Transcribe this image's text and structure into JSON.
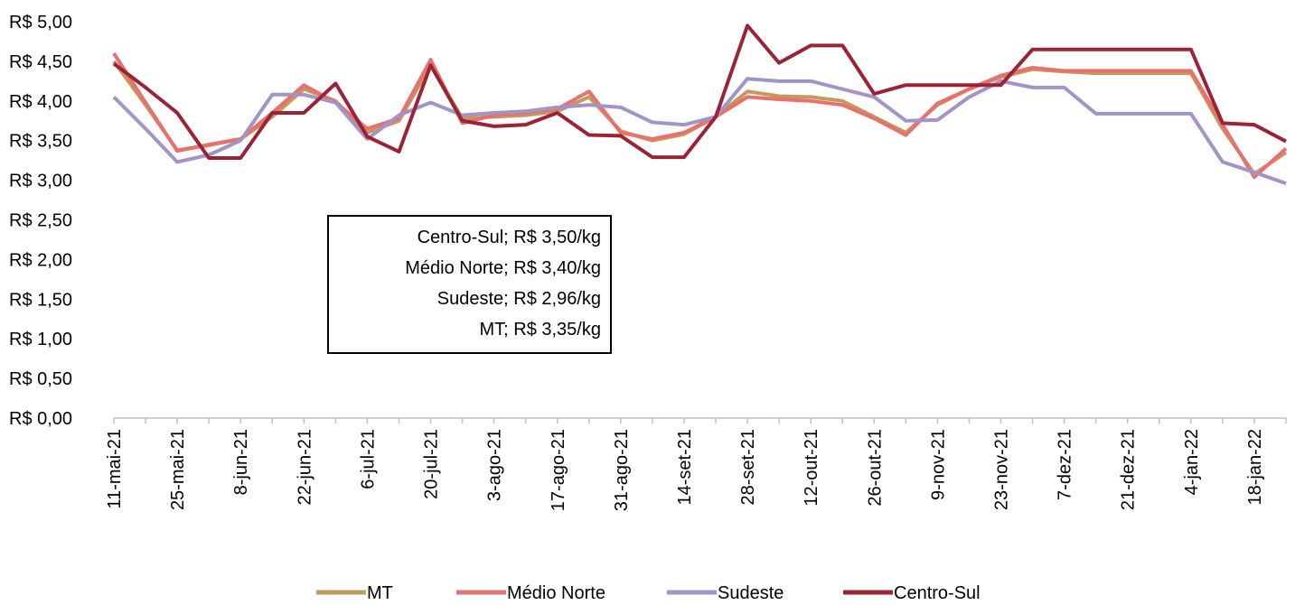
{
  "chart_data": {
    "type": "line",
    "categories": [
      "11-mai-21",
      null,
      "25-mai-21",
      null,
      "8-jun-21",
      null,
      "22-jun-21",
      null,
      "6-jul-21",
      null,
      "20-jul-21",
      null,
      "3-ago-21",
      null,
      "17-ago-21",
      null,
      "31-ago-21",
      null,
      "14-set-21",
      null,
      "28-set-21",
      null,
      "12-out-21",
      null,
      "26-out-21",
      null,
      "9-nov-21",
      null,
      "23-nov-21",
      null,
      "7-dez-21",
      null,
      "21-dez-21",
      null,
      "4-jan-22",
      null,
      "18-jan-22",
      null
    ],
    "series": [
      {
        "name": "MT",
        "color": "#c49a5c",
        "values": [
          4.5,
          3.95,
          3.38,
          3.44,
          3.52,
          3.8,
          4.15,
          4.0,
          3.6,
          3.75,
          4.45,
          3.78,
          3.8,
          3.82,
          3.87,
          4.05,
          3.62,
          3.5,
          3.58,
          3.8,
          4.12,
          4.06,
          4.05,
          4.0,
          3.8,
          3.6,
          3.95,
          4.15,
          4.3,
          4.4,
          4.37,
          4.35,
          4.35,
          4.35,
          4.35,
          3.65,
          3.08,
          3.35
        ]
      },
      {
        "name": "Médio Norte",
        "color": "#e8716d",
        "values": [
          4.6,
          3.98,
          3.37,
          3.45,
          3.52,
          3.85,
          4.2,
          3.98,
          3.65,
          3.78,
          4.52,
          3.72,
          3.82,
          3.85,
          3.9,
          4.12,
          3.6,
          3.52,
          3.6,
          3.8,
          4.05,
          4.02,
          4.0,
          3.95,
          3.78,
          3.57,
          3.97,
          4.15,
          4.32,
          4.42,
          4.38,
          4.38,
          4.38,
          4.38,
          4.38,
          3.7,
          3.04,
          3.4
        ]
      },
      {
        "name": "Sudeste",
        "color": "#a493c6",
        "values": [
          4.05,
          3.65,
          3.23,
          3.32,
          3.5,
          4.08,
          4.08,
          3.98,
          3.52,
          3.82,
          3.98,
          3.82,
          3.85,
          3.87,
          3.92,
          3.95,
          3.92,
          3.73,
          3.7,
          3.8,
          4.28,
          4.25,
          4.25,
          4.15,
          4.05,
          3.75,
          3.76,
          4.05,
          4.25,
          4.17,
          4.17,
          3.84,
          3.84,
          3.84,
          3.84,
          3.23,
          3.1,
          2.96
        ]
      },
      {
        "name": "Centro-Sul",
        "color": "#9b2335",
        "values": [
          4.47,
          4.17,
          3.85,
          3.28,
          3.28,
          3.85,
          3.85,
          4.22,
          3.55,
          3.36,
          4.45,
          3.75,
          3.68,
          3.7,
          3.85,
          3.57,
          3.56,
          3.29,
          3.29,
          3.8,
          4.95,
          4.48,
          4.7,
          4.7,
          4.09,
          4.2,
          4.2,
          4.2,
          4.2,
          4.65,
          4.65,
          4.65,
          4.65,
          4.65,
          4.65,
          3.72,
          3.7,
          3.49
        ]
      }
    ],
    "ylim": [
      0,
      5
    ],
    "yticks": [
      {
        "value": 0,
        "label": "R$ 0,00"
      },
      {
        "value": 0.5,
        "label": "R$ 0,50"
      },
      {
        "value": 1,
        "label": "R$ 1,00"
      },
      {
        "value": 1.5,
        "label": "R$ 1,50"
      },
      {
        "value": 2,
        "label": "R$ 2,00"
      },
      {
        "value": 2.5,
        "label": "R$ 2,50"
      },
      {
        "value": 3,
        "label": "R$ 3,00"
      },
      {
        "value": 3.5,
        "label": "R$ 3,50"
      },
      {
        "value": 4,
        "label": "R$ 4,00"
      },
      {
        "value": 4.5,
        "label": "R$ 4,50"
      },
      {
        "value": 5,
        "label": "R$ 5,00"
      }
    ],
    "annotations": [
      "Centro-Sul; R$ 3,50/kg",
      "Médio Norte; R$ 3,40/kg",
      "Sudeste; R$ 2,96/kg",
      "MT; R$ 3,35/kg"
    ],
    "legend": "bottom"
  }
}
